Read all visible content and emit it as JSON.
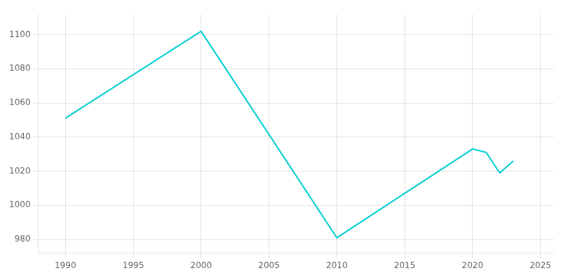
{
  "chart_data": {
    "type": "line",
    "x": [
      1990,
      2000,
      2010,
      2020,
      2021,
      2022,
      2023
    ],
    "values": [
      1051,
      1102,
      981,
      1033,
      1031,
      1019,
      1026
    ],
    "color": "#00CED1",
    "xlim": [
      1988,
      2026
    ],
    "ylim": [
      972,
      1112
    ],
    "xticks": [
      1990,
      1995,
      2000,
      2005,
      2010,
      2015,
      2020,
      2025
    ],
    "yticks": [
      980,
      1000,
      1020,
      1040,
      1060,
      1080,
      1100
    ],
    "grid": true
  }
}
